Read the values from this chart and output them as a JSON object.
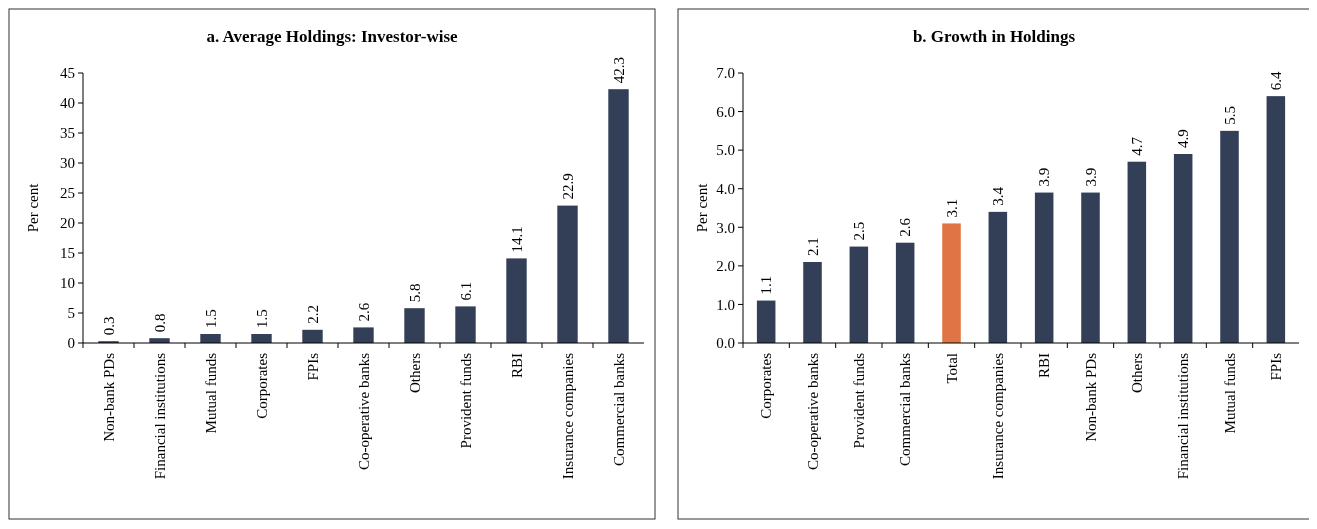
{
  "chart_data": [
    {
      "type": "bar",
      "title": "a. Average Holdings: Investor-wise",
      "ylabel": "Per cent",
      "categories": [
        "Non-bank PDs",
        "Financial institutions",
        "Mutual funds",
        "Corporates",
        "FPIs",
        "Co-operative banks",
        "Others",
        "Provident funds",
        "RBI",
        "Insurance companies",
        "Commercial banks"
      ],
      "values": [
        0.3,
        0.8,
        1.5,
        1.5,
        2.2,
        2.6,
        5.8,
        6.1,
        14.1,
        22.9,
        42.3
      ],
      "color": "#323f56",
      "ylim": [
        0,
        45
      ],
      "yticks": [
        0,
        5,
        10,
        15,
        20,
        25,
        30,
        35,
        40,
        45
      ],
      "data_labels": true
    },
    {
      "type": "bar",
      "title": "b. Growth in Holdings",
      "ylabel": "Per cent",
      "categories": [
        "Corporates",
        "Co-operative banks",
        "Provident funds",
        "Commercial banks",
        "Total",
        "Insurance companies",
        "RBI",
        "Non-bank PDs",
        "Others",
        "Financial institutions",
        "Mutual funds",
        "FPIs"
      ],
      "values": [
        1.1,
        2.1,
        2.5,
        2.6,
        3.1,
        3.4,
        3.9,
        3.9,
        4.7,
        4.9,
        5.5,
        6.4
      ],
      "colors": [
        "#323f56",
        "#323f56",
        "#323f56",
        "#323f56",
        "#e07444",
        "#323f56",
        "#323f56",
        "#323f56",
        "#323f56",
        "#323f56",
        "#323f56",
        "#323f56"
      ],
      "ylim": [
        0,
        7
      ],
      "yticks": [
        {
          "value": 0,
          "label": "0.0"
        },
        {
          "value": 1,
          "label": "1.0"
        },
        {
          "value": 2,
          "label": "2.0"
        },
        {
          "value": 3,
          "label": "3.0"
        },
        {
          "value": 4,
          "label": "4.0"
        },
        {
          "value": 5,
          "label": "5.0"
        },
        {
          "value": 6,
          "label": "6.0"
        },
        {
          "value": 7,
          "label": "7.0"
        }
      ],
      "data_labels": true
    }
  ]
}
